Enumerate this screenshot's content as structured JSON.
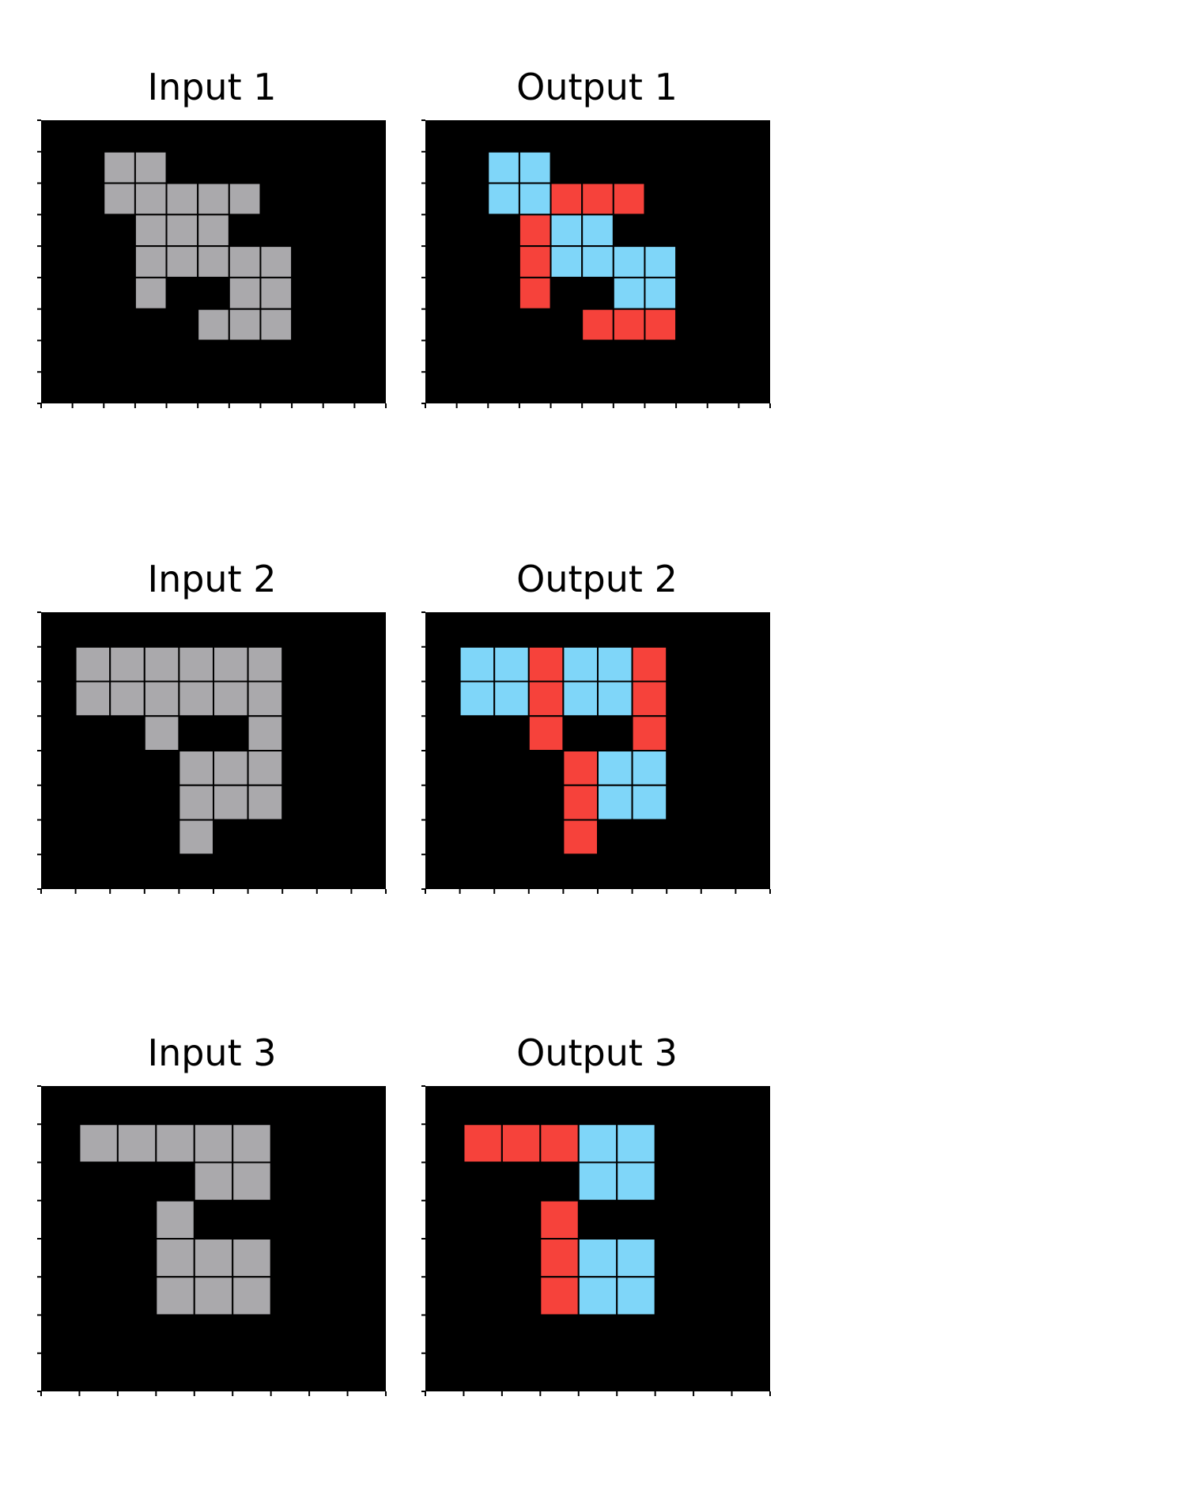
{
  "colors": {
    "0": "#000000",
    "5": "#aaa9ac",
    "8": "#7fd6f9",
    "2": "#f6423b",
    "grid_line": "#000000",
    "tick": "#000000",
    "background": "#ffffff"
  },
  "pairs": [
    {
      "input_title": "Input 1",
      "output_title": "Output 1",
      "input": [
        [
          0,
          0,
          0,
          0,
          0,
          0,
          0,
          0,
          0,
          0,
          0
        ],
        [
          0,
          0,
          5,
          5,
          0,
          0,
          0,
          0,
          0,
          0,
          0
        ],
        [
          0,
          0,
          5,
          5,
          5,
          5,
          5,
          0,
          0,
          0,
          0
        ],
        [
          0,
          0,
          0,
          5,
          5,
          5,
          0,
          0,
          0,
          0,
          0
        ],
        [
          0,
          0,
          0,
          5,
          5,
          5,
          5,
          5,
          0,
          0,
          0
        ],
        [
          0,
          0,
          0,
          5,
          0,
          0,
          5,
          5,
          0,
          0,
          0
        ],
        [
          0,
          0,
          0,
          0,
          0,
          5,
          5,
          5,
          0,
          0,
          0
        ],
        [
          0,
          0,
          0,
          0,
          0,
          0,
          0,
          0,
          0,
          0,
          0
        ],
        [
          0,
          0,
          0,
          0,
          0,
          0,
          0,
          0,
          0,
          0,
          0
        ]
      ],
      "output": [
        [
          0,
          0,
          0,
          0,
          0,
          0,
          0,
          0,
          0,
          0,
          0
        ],
        [
          0,
          0,
          8,
          8,
          0,
          0,
          0,
          0,
          0,
          0,
          0
        ],
        [
          0,
          0,
          8,
          8,
          2,
          2,
          2,
          0,
          0,
          0,
          0
        ],
        [
          0,
          0,
          0,
          2,
          8,
          8,
          0,
          0,
          0,
          0,
          0
        ],
        [
          0,
          0,
          0,
          2,
          8,
          8,
          8,
          8,
          0,
          0,
          0
        ],
        [
          0,
          0,
          0,
          2,
          0,
          0,
          8,
          8,
          0,
          0,
          0
        ],
        [
          0,
          0,
          0,
          0,
          0,
          2,
          2,
          2,
          0,
          0,
          0
        ],
        [
          0,
          0,
          0,
          0,
          0,
          0,
          0,
          0,
          0,
          0,
          0
        ],
        [
          0,
          0,
          0,
          0,
          0,
          0,
          0,
          0,
          0,
          0,
          0
        ]
      ]
    },
    {
      "input_title": "Input 2",
      "output_title": "Output 2",
      "input": [
        [
          0,
          0,
          0,
          0,
          0,
          0,
          0,
          0,
          0,
          0
        ],
        [
          0,
          5,
          5,
          5,
          5,
          5,
          5,
          0,
          0,
          0
        ],
        [
          0,
          5,
          5,
          5,
          5,
          5,
          5,
          0,
          0,
          0
        ],
        [
          0,
          0,
          0,
          5,
          0,
          0,
          5,
          0,
          0,
          0
        ],
        [
          0,
          0,
          0,
          0,
          5,
          5,
          5,
          0,
          0,
          0
        ],
        [
          0,
          0,
          0,
          0,
          5,
          5,
          5,
          0,
          0,
          0
        ],
        [
          0,
          0,
          0,
          0,
          5,
          0,
          0,
          0,
          0,
          0
        ],
        [
          0,
          0,
          0,
          0,
          0,
          0,
          0,
          0,
          0,
          0
        ]
      ],
      "output": [
        [
          0,
          0,
          0,
          0,
          0,
          0,
          0,
          0,
          0,
          0
        ],
        [
          0,
          8,
          8,
          2,
          8,
          8,
          2,
          0,
          0,
          0
        ],
        [
          0,
          8,
          8,
          2,
          8,
          8,
          2,
          0,
          0,
          0
        ],
        [
          0,
          0,
          0,
          2,
          0,
          0,
          2,
          0,
          0,
          0
        ],
        [
          0,
          0,
          0,
          0,
          2,
          8,
          8,
          0,
          0,
          0
        ],
        [
          0,
          0,
          0,
          0,
          2,
          8,
          8,
          0,
          0,
          0
        ],
        [
          0,
          0,
          0,
          0,
          2,
          0,
          0,
          0,
          0,
          0
        ],
        [
          0,
          0,
          0,
          0,
          0,
          0,
          0,
          0,
          0,
          0
        ]
      ]
    },
    {
      "input_title": "Input 3",
      "output_title": "Output 3",
      "input": [
        [
          0,
          0,
          0,
          0,
          0,
          0,
          0,
          0,
          0
        ],
        [
          0,
          5,
          5,
          5,
          5,
          5,
          0,
          0,
          0
        ],
        [
          0,
          0,
          0,
          0,
          5,
          5,
          0,
          0,
          0
        ],
        [
          0,
          0,
          0,
          5,
          0,
          0,
          0,
          0,
          0
        ],
        [
          0,
          0,
          0,
          5,
          5,
          5,
          0,
          0,
          0
        ],
        [
          0,
          0,
          0,
          5,
          5,
          5,
          0,
          0,
          0
        ],
        [
          0,
          0,
          0,
          0,
          0,
          0,
          0,
          0,
          0
        ],
        [
          0,
          0,
          0,
          0,
          0,
          0,
          0,
          0,
          0
        ]
      ],
      "output": [
        [
          0,
          0,
          0,
          0,
          0,
          0,
          0,
          0,
          0
        ],
        [
          0,
          2,
          2,
          2,
          8,
          8,
          0,
          0,
          0
        ],
        [
          0,
          0,
          0,
          0,
          8,
          8,
          0,
          0,
          0
        ],
        [
          0,
          0,
          0,
          2,
          0,
          0,
          0,
          0,
          0
        ],
        [
          0,
          0,
          0,
          2,
          8,
          8,
          0,
          0,
          0
        ],
        [
          0,
          0,
          0,
          2,
          8,
          8,
          0,
          0,
          0
        ],
        [
          0,
          0,
          0,
          0,
          0,
          0,
          0,
          0,
          0
        ],
        [
          0,
          0,
          0,
          0,
          0,
          0,
          0,
          0,
          0
        ]
      ]
    }
  ]
}
